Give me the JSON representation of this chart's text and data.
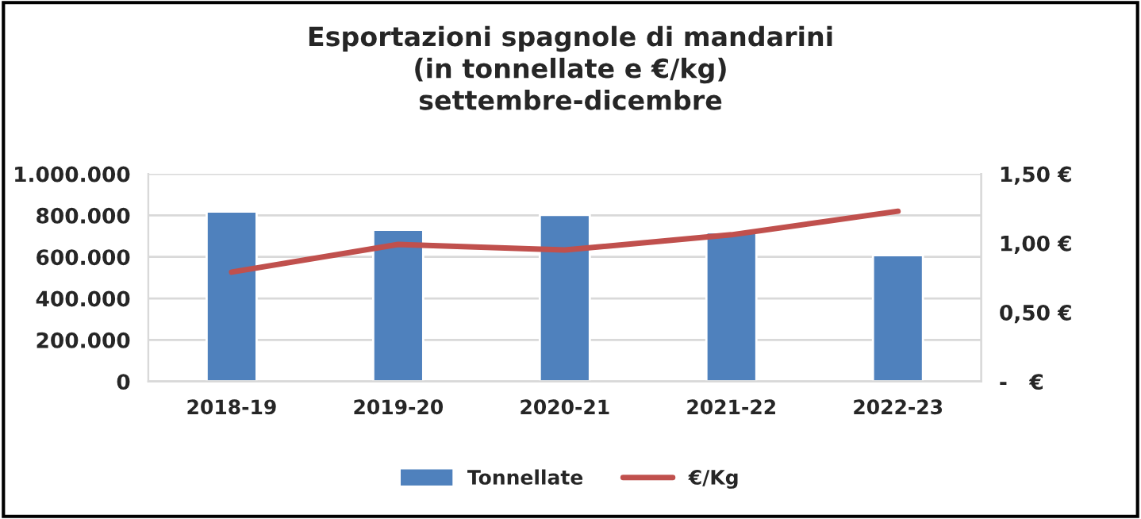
{
  "chart_data": {
    "type": "bar",
    "title": "Esportazioni spagnole di mandarini\n(in tonnellate e €/kg)\nsettembre-dicembre",
    "categories": [
      "2018-19",
      "2019-20",
      "2020-21",
      "2021-22",
      "2022-23"
    ],
    "series": [
      {
        "name": "Tonnellate",
        "color": "#4f81bd",
        "values": [
          818000,
          730000,
          802000,
          718000,
          608000
        ]
      },
      {
        "name": "€/Kg",
        "type": "line",
        "axis": "y2",
        "color": "#c0504d",
        "values": [
          0.79,
          0.99,
          0.95,
          1.06,
          1.23
        ]
      }
    ],
    "ylim": [
      0,
      1000000
    ],
    "yticks": [
      {
        "value": 0,
        "label": "0"
      },
      {
        "value": 200000,
        "label": "200.000"
      },
      {
        "value": 400000,
        "label": "400.000"
      },
      {
        "value": 600000,
        "label": "600.000"
      },
      {
        "value": 800000,
        "label": "800.000"
      },
      {
        "value": 1000000,
        "label": "1.000.000"
      }
    ],
    "y2lim": [
      0,
      1.5
    ],
    "y2ticks": [
      {
        "value": 0,
        "label": "-   €"
      },
      {
        "value": 0.5,
        "label": "0,50 €"
      },
      {
        "value": 1.0,
        "label": "1,00 €"
      },
      {
        "value": 1.5,
        "label": "1,50 €"
      }
    ],
    "grid": "y",
    "legend": "bottom",
    "marker": "none",
    "line_style": "solid"
  }
}
